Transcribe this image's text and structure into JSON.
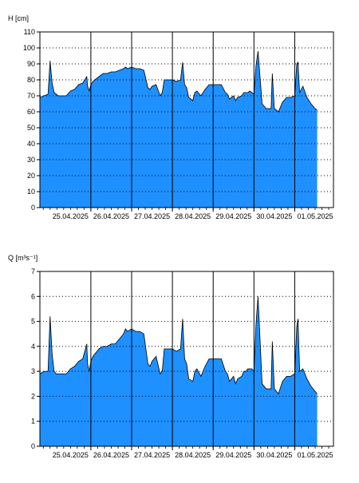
{
  "colors": {
    "area_fill": "#1e90ff",
    "area_edge": "#000000",
    "grid": "#000000",
    "frame": "#000000",
    "background": "#ffffff"
  },
  "chart_data": [
    {
      "type": "area",
      "ylabel": "H [cm]",
      "ylim": [
        0,
        110
      ],
      "yticks": [
        0,
        10,
        20,
        30,
        40,
        50,
        60,
        70,
        80,
        90,
        100,
        110
      ],
      "xlim": [
        -0.25,
        6.95
      ],
      "date_ticks": [
        "25.04.2025",
        "26.04.2025",
        "27.04.2025",
        "28.04.2025",
        "29.04.2025",
        "30.04.2025",
        "01.05.2025"
      ],
      "grid": "dotted horizontal; solid vertical day lines",
      "x": [
        -0.25,
        -0.15,
        -0.05,
        0.0,
        0.05,
        0.1,
        0.15,
        0.2,
        0.4,
        0.5,
        0.6,
        0.7,
        0.8,
        0.9,
        0.92,
        0.96,
        1.0,
        1.05,
        1.1,
        1.2,
        1.3,
        1.4,
        1.5,
        1.6,
        1.7,
        1.8,
        1.85,
        1.9,
        2.0,
        2.1,
        2.2,
        2.3,
        2.4,
        2.45,
        2.5,
        2.6,
        2.7,
        2.75,
        2.8,
        2.9,
        3.0,
        3.1,
        3.2,
        3.25,
        3.3,
        3.35,
        3.4,
        3.5,
        3.55,
        3.6,
        3.7,
        3.8,
        3.9,
        4.0,
        4.1,
        4.2,
        4.3,
        4.35,
        4.4,
        4.5,
        4.55,
        4.6,
        4.7,
        4.75,
        4.8,
        4.85,
        4.9,
        4.95,
        5.0,
        5.05,
        5.1,
        5.2,
        5.3,
        5.35,
        5.38,
        5.42,
        5.45,
        5.5,
        5.6,
        5.7,
        5.8,
        5.9,
        6.0,
        6.05,
        6.08,
        6.12,
        6.2,
        6.3,
        6.4,
        6.5,
        6.55
      ],
      "values": [
        69,
        70,
        71,
        92,
        78,
        72,
        71,
        70,
        70,
        73,
        74,
        77,
        78,
        82,
        76,
        73,
        77,
        79,
        80,
        82,
        84,
        84,
        85,
        85,
        86,
        87,
        88,
        87,
        88,
        87,
        87,
        86,
        75,
        74,
        76,
        77,
        70,
        72,
        80,
        80,
        80,
        79,
        80,
        91,
        77,
        75,
        69,
        67,
        72,
        73,
        70,
        74,
        77,
        77,
        77,
        77,
        72,
        71,
        68,
        70,
        67,
        69,
        70,
        72,
        72,
        72,
        73,
        72,
        71,
        89,
        98,
        65,
        62,
        62,
        62,
        62,
        84,
        62,
        60,
        66,
        69,
        69,
        70,
        90,
        91,
        72,
        76,
        69,
        65,
        62,
        61
      ]
    },
    {
      "type": "area",
      "ylabel": "Q [m³s⁻¹]",
      "ylim": [
        0,
        7
      ],
      "yticks": [
        0,
        1,
        2,
        3,
        4,
        5,
        6,
        7
      ],
      "xlim": [
        -0.25,
        6.95
      ],
      "date_ticks": [
        "25.04.2025",
        "26.04.2025",
        "27.04.2025",
        "28.04.2025",
        "29.04.2025",
        "30.04.2025",
        "01.05.2025"
      ],
      "grid": "dotted horizontal; solid vertical day lines",
      "x": [
        -0.25,
        -0.15,
        -0.05,
        0.0,
        0.05,
        0.1,
        0.15,
        0.2,
        0.4,
        0.5,
        0.6,
        0.7,
        0.8,
        0.9,
        0.92,
        0.96,
        1.0,
        1.05,
        1.1,
        1.2,
        1.3,
        1.4,
        1.5,
        1.6,
        1.7,
        1.8,
        1.85,
        1.9,
        2.0,
        2.1,
        2.2,
        2.3,
        2.4,
        2.45,
        2.5,
        2.6,
        2.7,
        2.75,
        2.8,
        2.9,
        3.0,
        3.1,
        3.2,
        3.25,
        3.3,
        3.35,
        3.4,
        3.5,
        3.55,
        3.6,
        3.7,
        3.8,
        3.9,
        4.0,
        4.1,
        4.2,
        4.3,
        4.35,
        4.4,
        4.5,
        4.55,
        4.6,
        4.7,
        4.75,
        4.8,
        4.85,
        4.9,
        4.95,
        5.0,
        5.05,
        5.1,
        5.2,
        5.3,
        5.35,
        5.38,
        5.42,
        5.45,
        5.5,
        5.6,
        5.7,
        5.8,
        5.9,
        6.0,
        6.05,
        6.08,
        6.12,
        6.2,
        6.3,
        6.4,
        6.5,
        6.55
      ],
      "values": [
        2.9,
        3.0,
        3.0,
        5.2,
        3.7,
        3.0,
        2.9,
        2.9,
        2.9,
        3.1,
        3.2,
        3.4,
        3.5,
        4.1,
        3.3,
        3.0,
        3.4,
        3.6,
        3.7,
        3.9,
        4.0,
        4.0,
        4.1,
        4.1,
        4.3,
        4.5,
        4.7,
        4.6,
        4.7,
        4.6,
        4.6,
        4.5,
        3.3,
        3.2,
        3.4,
        3.6,
        2.9,
        3.0,
        3.9,
        3.9,
        3.9,
        3.8,
        3.9,
        5.1,
        3.5,
        3.3,
        2.7,
        2.6,
        3.0,
        3.1,
        2.8,
        3.2,
        3.5,
        3.5,
        3.5,
        3.5,
        3.0,
        2.9,
        2.6,
        2.8,
        2.5,
        2.7,
        2.8,
        3.0,
        3.0,
        3.1,
        3.1,
        3.1,
        3.0,
        4.9,
        6.0,
        2.5,
        2.3,
        2.3,
        2.3,
        2.3,
        4.2,
        2.3,
        2.1,
        2.6,
        2.8,
        2.8,
        2.9,
        4.8,
        5.1,
        3.0,
        3.1,
        2.7,
        2.4,
        2.2,
        2.1
      ]
    }
  ]
}
